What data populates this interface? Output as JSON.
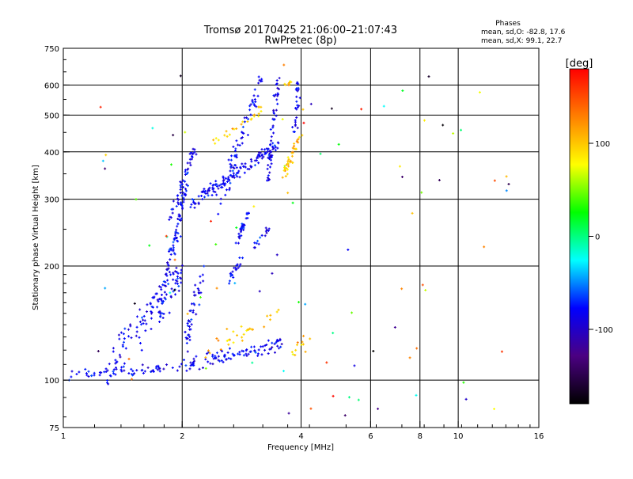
{
  "header": {
    "title_line1": "Tromsø 20170425 21:06:00–21:07:43",
    "title_line2": "RwPretec (8p)"
  },
  "phase_box": {
    "heading": "Phases",
    "line_o": "mean, sd,O: -82.8, 17.6",
    "line_x": "mean, sd,X: 99.1, 22.7"
  },
  "chart_data": {
    "type": "scatter",
    "xlabel": "Frequency [MHz]",
    "ylabel": "Stationary phase Virtual Height [km]",
    "xscale": "log",
    "yscale": "log",
    "xlim": [
      1,
      16
    ],
    "ylim": [
      75,
      750
    ],
    "xticks": [
      1,
      2,
      4,
      6,
      8,
      10,
      16
    ],
    "yticks": [
      75,
      100,
      200,
      300,
      400,
      500,
      600,
      750
    ],
    "xgrid": [
      2,
      4,
      6,
      8,
      10
    ],
    "ygrid": [
      100,
      200,
      300,
      400,
      500,
      600
    ],
    "colorbar": {
      "label": "[deg]",
      "range": [
        -180,
        180
      ],
      "ticks": [
        100,
        0,
        -100
      ],
      "colors": [
        "#000000",
        "#4b0082",
        "#0000ff",
        "#00ffff",
        "#00ff00",
        "#ffff00",
        "#ff8000",
        "#ff0000"
      ]
    },
    "series": [
      {
        "mode": "O",
        "phase_mean": -82.8,
        "phase_sd": 17.6,
        "traces": [
          {
            "f0": 1.0,
            "f1": 2.0,
            "h0": 103,
            "h1": 108,
            "n": 60,
            "spread": 2.5
          },
          {
            "f0": 1.3,
            "f1": 2.0,
            "h0": 110,
            "h1": 190,
            "n": 110,
            "spread": 14
          },
          {
            "f0": 1.75,
            "f1": 2.05,
            "h0": 150,
            "h1": 330,
            "n": 90,
            "spread": 14
          },
          {
            "f0": 1.85,
            "f1": 2.15,
            "h0": 260,
            "h1": 410,
            "n": 45,
            "spread": 10
          },
          {
            "f0": 2.0,
            "f1": 2.25,
            "h0": 120,
            "h1": 190,
            "n": 45,
            "spread": 10
          },
          {
            "f0": 2.05,
            "f1": 3.6,
            "h0": 110,
            "h1": 125,
            "n": 95,
            "spread": 4
          },
          {
            "f0": 2.1,
            "f1": 3.5,
            "h0": 290,
            "h1": 420,
            "n": 130,
            "spread": 10
          },
          {
            "f0": 2.5,
            "f1": 3.2,
            "h0": 300,
            "h1": 640,
            "n": 70,
            "spread": 25
          },
          {
            "f0": 3.3,
            "f1": 3.5,
            "h0": 330,
            "h1": 630,
            "n": 55,
            "spread": 8
          },
          {
            "f0": 3.85,
            "f1": 3.95,
            "h0": 440,
            "h1": 620,
            "n": 25,
            "spread": 4
          },
          {
            "f0": 2.75,
            "f1": 2.95,
            "h0": 230,
            "h1": 280,
            "n": 30,
            "spread": 5
          },
          {
            "f0": 2.6,
            "f1": 2.85,
            "h0": 180,
            "h1": 210,
            "n": 20,
            "spread": 5
          },
          {
            "f0": 3.05,
            "f1": 3.3,
            "h0": 225,
            "h1": 250,
            "n": 15,
            "spread": 4
          }
        ]
      },
      {
        "mode": "X",
        "phase_mean": 99.1,
        "phase_sd": 22.7,
        "traces": [
          {
            "f0": 3.6,
            "f1": 4.0,
            "h0": 350,
            "h1": 440,
            "n": 40,
            "spread": 12
          },
          {
            "f0": 3.65,
            "f1": 3.8,
            "h0": 600,
            "h1": 615,
            "n": 8,
            "spread": 3
          },
          {
            "f0": 3.8,
            "f1": 4.3,
            "h0": 118,
            "h1": 135,
            "n": 10,
            "spread": 4
          },
          {
            "f0": 2.3,
            "f1": 3.5,
            "h0": 120,
            "h1": 150,
            "n": 30,
            "spread": 6
          },
          {
            "f0": 2.4,
            "f1": 3.2,
            "h0": 420,
            "h1": 520,
            "n": 25,
            "spread": 12
          }
        ]
      },
      {
        "mode": "scatter",
        "traces": [
          {
            "f0": 1.2,
            "f1": 14.0,
            "h0": 80,
            "h1": 700,
            "n": 95,
            "spread": 0
          }
        ]
      }
    ]
  }
}
